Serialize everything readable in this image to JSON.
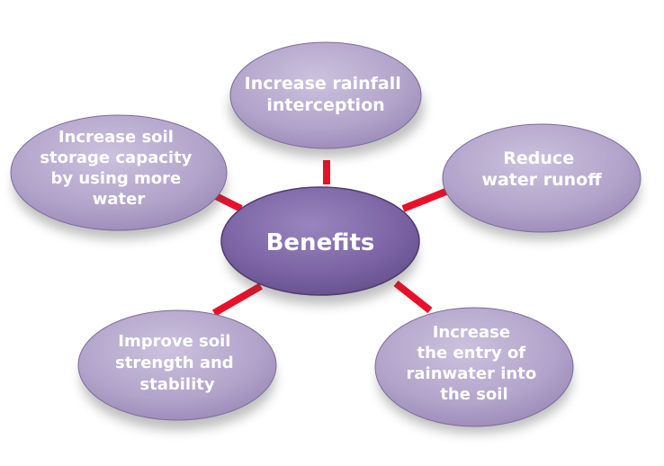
{
  "center": {
    "label": "Benefits"
  },
  "benefits": [
    {
      "id": "rainfall-interception",
      "lines": [
        "Increase rainfall",
        "interception"
      ]
    },
    {
      "id": "water-runoff",
      "lines": [
        "Reduce",
        "water runoff"
      ]
    },
    {
      "id": "rainwater-entry",
      "lines": [
        "Increase",
        "the entry of",
        "rainwater into",
        "the soil"
      ]
    },
    {
      "id": "soil-strength",
      "lines": [
        "Improve soil",
        "strength and",
        "stability"
      ]
    },
    {
      "id": "soil-storage",
      "lines": [
        "Increase soil",
        "storage capacity",
        "by using more",
        "water"
      ]
    }
  ],
  "colors": {
    "center_fill": "#7e66a6",
    "center_edge": "#4f3d72",
    "node_fill": "#b4a6cc",
    "node_edge": "#7d6c9c",
    "connector": "#e8102a",
    "shadow": "#4a4a4a"
  }
}
